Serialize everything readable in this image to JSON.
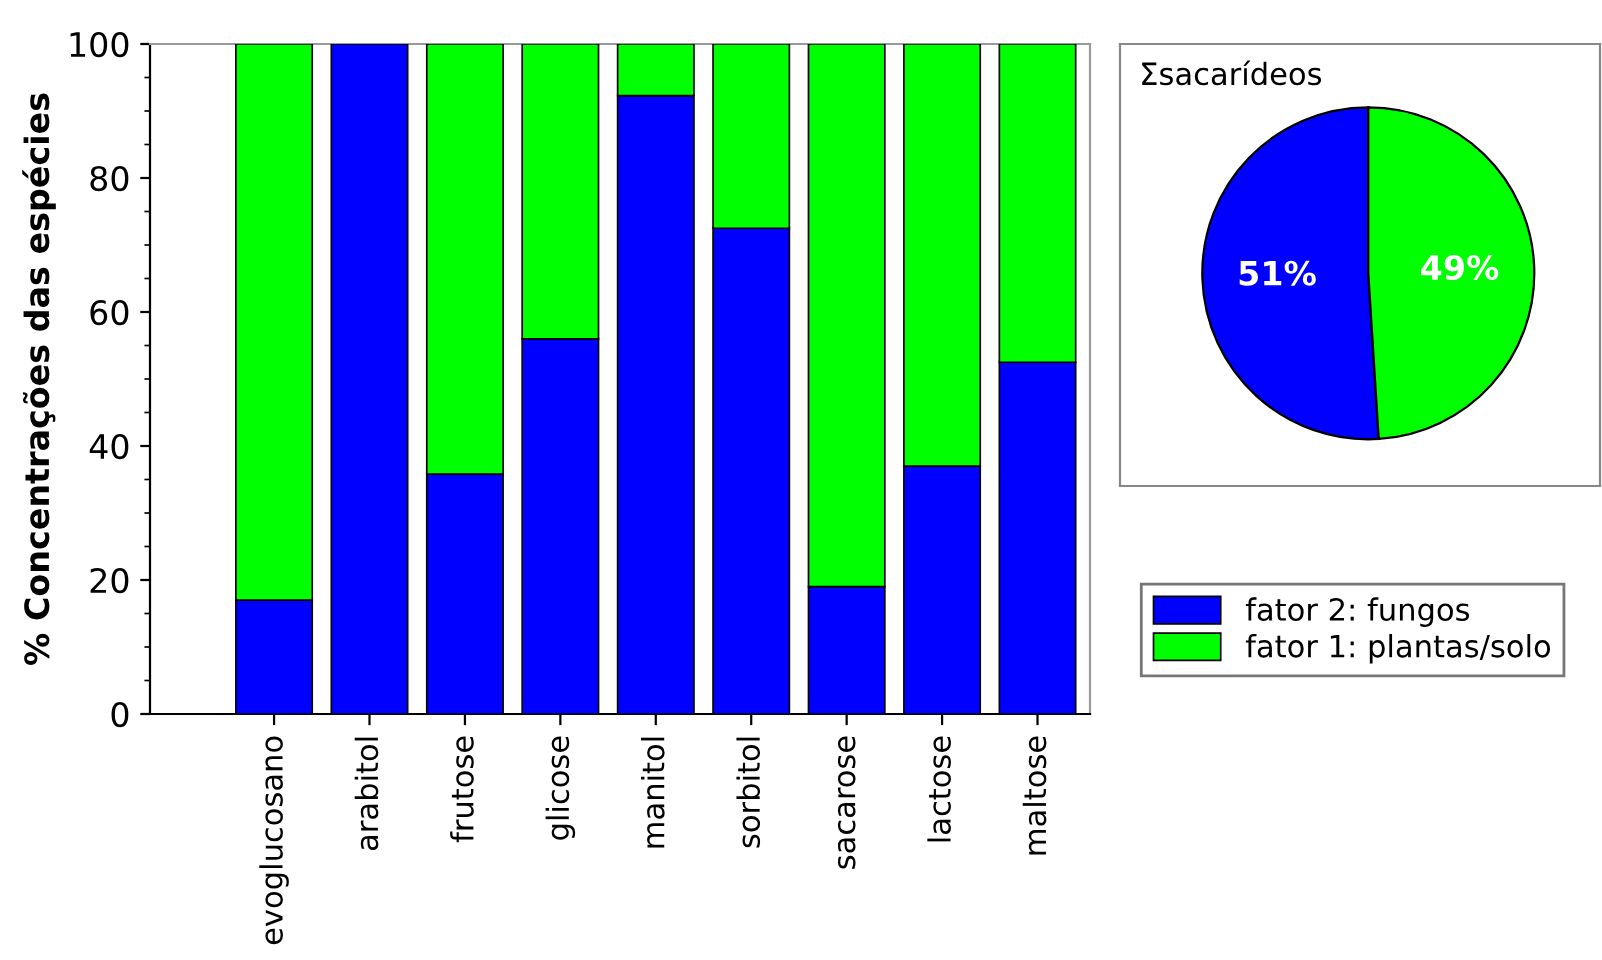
{
  "chart_data": [
    {
      "type": "bar",
      "stacked": true,
      "ylabel": "% Concentrações das espécies",
      "categories": [
        "evoglucosano",
        "arabitol",
        "frutose",
        "glicose",
        "manitol",
        "sorbitol",
        "sacarose",
        "lactose",
        "maltose"
      ],
      "series": [
        {
          "name": "fator 2: fungos",
          "color": "#0000ff",
          "values": [
            17,
            100,
            35.8,
            56,
            92.3,
            72.5,
            19,
            37,
            52.5
          ]
        },
        {
          "name": "fator 1: plantas/solo",
          "color": "#00ff00",
          "values": [
            83,
            null,
            64.2,
            44,
            7.7,
            27.5,
            81,
            63,
            47.5
          ]
        }
      ],
      "ylim": [
        0,
        100
      ],
      "yticks": [
        0,
        20,
        40,
        60,
        80,
        100
      ],
      "grid": false,
      "legend": "right"
    },
    {
      "type": "pie",
      "title": "Σsacarídeos",
      "categories": [
        null,
        null
      ],
      "values": [
        51,
        49
      ],
      "value_labels": [
        "51%",
        "49%"
      ],
      "colors": [
        "#0000ff",
        "#00ff00"
      ]
    }
  ]
}
